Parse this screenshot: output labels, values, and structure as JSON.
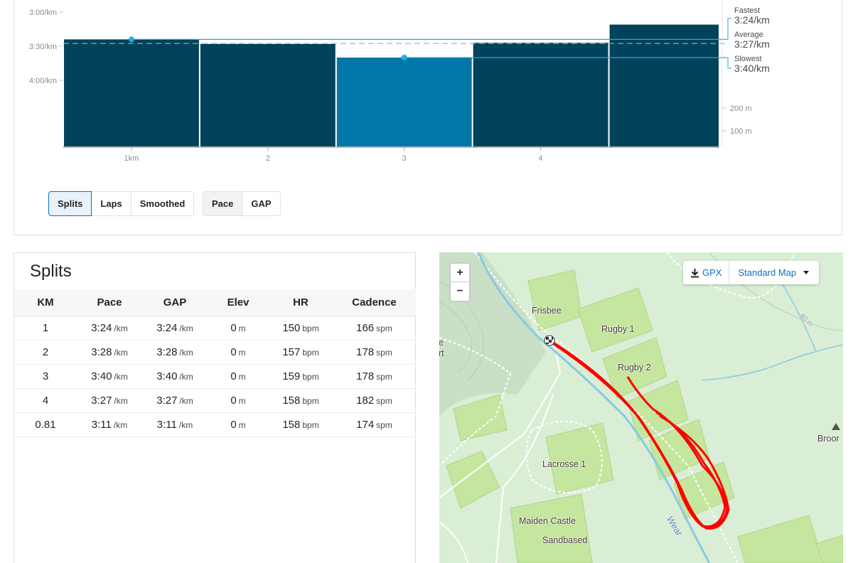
{
  "chart": {
    "y_ticks": [
      "3:00/km",
      "3:30/km",
      "4:00/km"
    ],
    "elev_ticks": [
      "200 m",
      "100 m"
    ],
    "x_labels": [
      "1km",
      "2",
      "3",
      "4"
    ],
    "fastest": {
      "label": "Fastest",
      "value": "3:24/km"
    },
    "average": {
      "label": "Average",
      "value": "3:27/km"
    },
    "slowest": {
      "label": "Slowest",
      "value": "3:40/km"
    },
    "highlight_index": 2,
    "colors": {
      "bar": "#02435b",
      "bar_highlight": "#0077a6",
      "marker": "#1eaee0",
      "line": "#2aa8d4"
    }
  },
  "chart_data": {
    "type": "bar",
    "categories": [
      "1km",
      "2",
      "3",
      "4",
      ""
    ],
    "values": [
      204,
      208,
      220,
      207,
      191
    ],
    "ylabel": "",
    "ylim": [
      180,
      255
    ],
    "y_unit": "seconds per km",
    "widths_km": [
      1,
      1,
      1,
      1,
      0.81
    ]
  },
  "toggles": {
    "view": [
      {
        "label": "Splits",
        "active": true
      },
      {
        "label": "Laps",
        "active": false
      },
      {
        "label": "Smoothed",
        "active": false
      }
    ],
    "metric": [
      {
        "label": "Pace",
        "active": false
      },
      {
        "label": "GAP",
        "active": false
      }
    ]
  },
  "splits": {
    "title": "Splits",
    "headers": [
      "KM",
      "Pace",
      "GAP",
      "Elev",
      "HR",
      "Cadence"
    ],
    "rows": [
      {
        "km": "1",
        "pace": "3:24",
        "pace_unit": "/km",
        "gap": "3:24",
        "gap_unit": "/km",
        "elev": "0",
        "elev_unit": "m",
        "hr": "150",
        "hr_unit": "bpm",
        "cad": "166",
        "cad_unit": "spm"
      },
      {
        "km": "2",
        "pace": "3:28",
        "pace_unit": "/km",
        "gap": "3:28",
        "gap_unit": "/km",
        "elev": "0",
        "elev_unit": "m",
        "hr": "157",
        "hr_unit": "bpm",
        "cad": "178",
        "cad_unit": "spm"
      },
      {
        "km": "3",
        "pace": "3:40",
        "pace_unit": "/km",
        "gap": "3:40",
        "gap_unit": "/km",
        "elev": "0",
        "elev_unit": "m",
        "hr": "159",
        "hr_unit": "bpm",
        "cad": "178",
        "cad_unit": "spm"
      },
      {
        "km": "4",
        "pace": "3:27",
        "pace_unit": "/km",
        "gap": "3:27",
        "gap_unit": "/km",
        "elev": "0",
        "elev_unit": "m",
        "hr": "158",
        "hr_unit": "bpm",
        "cad": "182",
        "cad_unit": "spm"
      },
      {
        "km": "0.81",
        "pace": "3:11",
        "pace_unit": "/km",
        "gap": "3:11",
        "gap_unit": "/km",
        "elev": "0",
        "elev_unit": "m",
        "hr": "158",
        "hr_unit": "bpm",
        "cad": "174",
        "cad_unit": "spm"
      }
    ]
  },
  "map": {
    "zoom_in": "+",
    "zoom_out": "−",
    "gpx_label": "GPX",
    "map_type": "Standard Map",
    "labels": {
      "frisbee": "Frisbee",
      "rugby1": "Rugby 1",
      "rugby2": "Rugby 2",
      "lacrosse": "Lacrosse 1",
      "maiden": "Maiden Castle",
      "sandbased": "Sandbased",
      "wear": "Wear",
      "broom": "Broor",
      "edge_e": "e",
      "edge_rt": "rt",
      "contour": "40 m"
    },
    "colors": {
      "route": "#ff0000",
      "river": "#88c9e6",
      "pitch": "#c4e69e",
      "park": "#d9eed5"
    }
  }
}
